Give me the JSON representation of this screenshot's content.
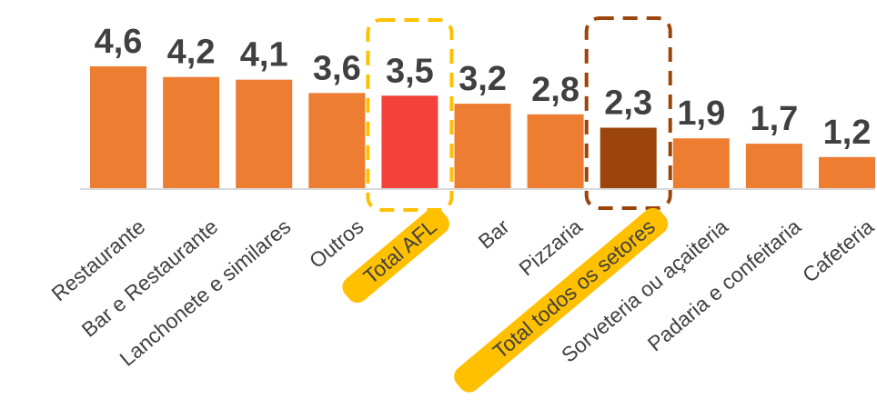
{
  "chart_data": {
    "type": "bar",
    "title": "",
    "xlabel": "",
    "ylabel": "",
    "ylim": [
      0,
      5
    ],
    "grid": false,
    "legend": "none",
    "categories": [
      "Restaurante",
      "Bar e Restaurante",
      "Lanchonete e similares",
      "Outros",
      "Total AFL",
      "Bar",
      "Pizzaria",
      "Total todos os setores",
      "Sorveteria ou açaiteria",
      "Padaria e confeitaria",
      "Cafeteria"
    ],
    "values": [
      4.6,
      4.2,
      4.1,
      3.6,
      3.5,
      3.2,
      2.8,
      2.3,
      1.9,
      1.7,
      1.2
    ],
    "value_labels": [
      "4,6",
      "4,2",
      "4,1",
      "3,6",
      "3,5",
      "3,2",
      "2,8",
      "2,3",
      "1,9",
      "1,7",
      "1,2"
    ],
    "colors": {
      "default": "#ED7D31",
      "highlight_total_afl": "#F4413A",
      "highlight_total_setores": "#9C450B",
      "frame_total_afl": "#FFC000",
      "frame_total_setores": "#9C450B",
      "label_badge": "#FFC000",
      "axis": "#D9D9D9",
      "text": "#404040"
    },
    "highlighted": [
      "Total AFL",
      "Total todos os setores"
    ]
  }
}
